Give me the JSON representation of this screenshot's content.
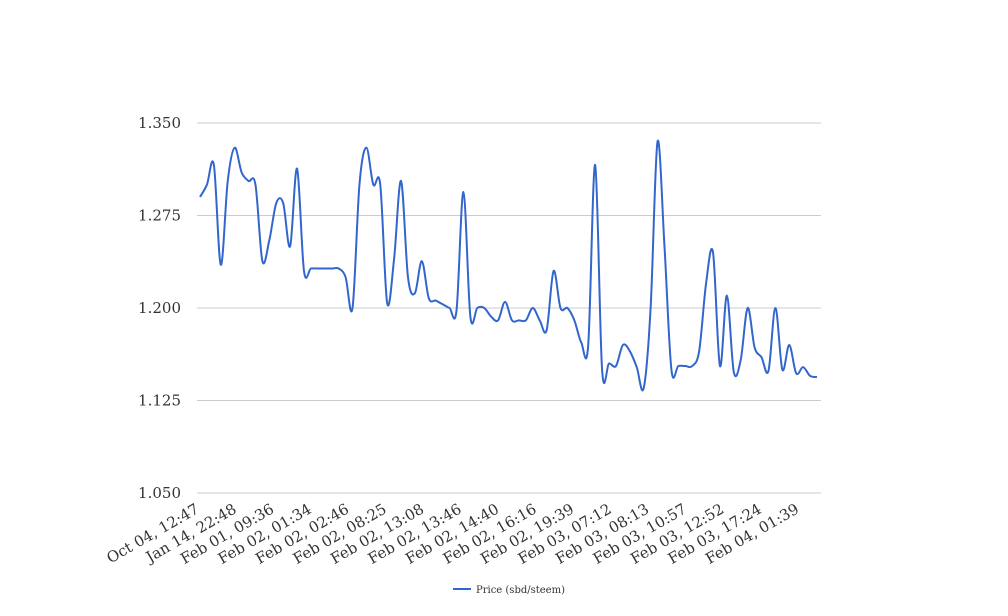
{
  "colors": {
    "series": "#3366cc",
    "grid": "#cccccc",
    "text": "#333333",
    "background": "#ffffff"
  },
  "chart_data": {
    "type": "line",
    "title": "",
    "xlabel": "",
    "ylabel": "",
    "grid": true,
    "legend_position": "bottom",
    "ylim": [
      1.05,
      1.35
    ],
    "y_ticks": [
      "1.050",
      "1.125",
      "1.200",
      "1.275",
      "1.350"
    ],
    "x_tick_labels": [
      "Oct 04, 12:47",
      "Jan 14, 22:48",
      "Feb 01, 09:36",
      "Feb 02, 01:34",
      "Feb 02, 02:46",
      "Feb 02, 08:25",
      "Feb 02, 13:08",
      "Feb 02, 13:46",
      "Feb 02, 14:40",
      "Feb 02, 16:16",
      "Feb 02, 19:39",
      "Feb 03, 07:12",
      "Feb 03, 08:13",
      "Feb 03, 10:57",
      "Feb 03, 12:52",
      "Feb 03, 17:24",
      "Feb 04, 01:39"
    ],
    "series": [
      {
        "name": "Price (sbd/steem)",
        "values": [
          1.29,
          1.3,
          1.316,
          1.235,
          1.303,
          1.33,
          1.31,
          1.303,
          1.3,
          1.238,
          1.255,
          1.285,
          1.285,
          1.25,
          1.313,
          1.23,
          1.232,
          1.232,
          1.232,
          1.232,
          1.232,
          1.225,
          1.2,
          1.3,
          1.33,
          1.3,
          1.3,
          1.204,
          1.24,
          1.303,
          1.225,
          1.212,
          1.238,
          1.208,
          1.206,
          1.203,
          1.2,
          1.198,
          1.294,
          1.193,
          1.2,
          1.2,
          1.193,
          1.19,
          1.205,
          1.19,
          1.19,
          1.19,
          1.2,
          1.19,
          1.182,
          1.23,
          1.2,
          1.2,
          1.19,
          1.172,
          1.17,
          1.316,
          1.15,
          1.155,
          1.153,
          1.17,
          1.165,
          1.152,
          1.135,
          1.2,
          1.335,
          1.25,
          1.15,
          1.153,
          1.153,
          1.153,
          1.165,
          1.22,
          1.245,
          1.153,
          1.21,
          1.148,
          1.158,
          1.2,
          1.168,
          1.16,
          1.149,
          1.2,
          1.15,
          1.17,
          1.147,
          1.152,
          1.145,
          1.144
        ]
      }
    ]
  }
}
